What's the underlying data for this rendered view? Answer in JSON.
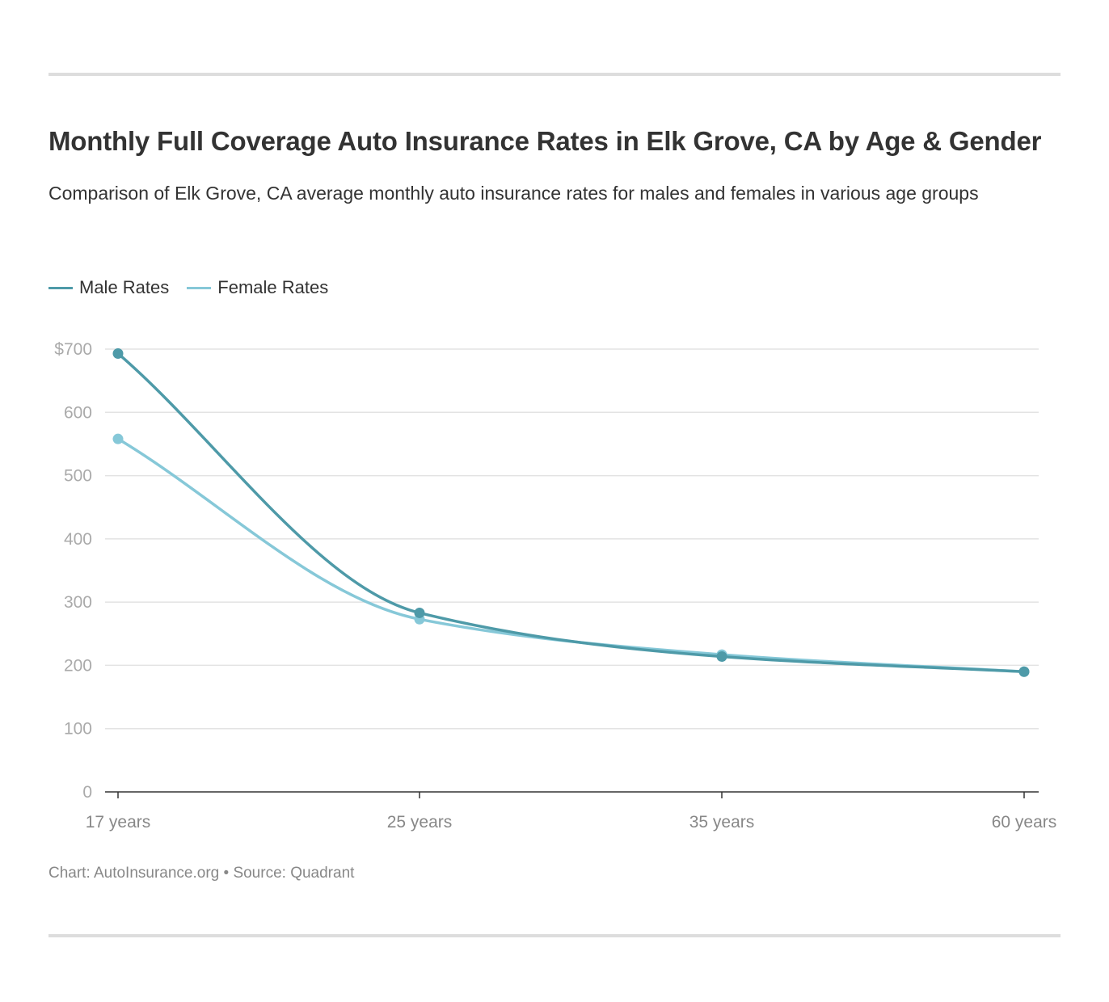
{
  "header": {
    "title": "Monthly Full Coverage Auto Insurance Rates in Elk Grove, CA by Age & Gender",
    "subtitle": "Comparison of Elk Grove, CA average monthly auto insurance rates for males and females in various age groups"
  },
  "legend": {
    "items": [
      {
        "label": "Male Rates",
        "color": "#4e9aa8"
      },
      {
        "label": "Female Rates",
        "color": "#86c8d8"
      }
    ]
  },
  "footer": {
    "source": "Chart: AutoInsurance.org • Source: Quadrant"
  },
  "chart_data": {
    "type": "line",
    "categories": [
      "17 years",
      "25 years",
      "35 years",
      "60 years"
    ],
    "series": [
      {
        "name": "Male Rates",
        "values": [
          693,
          283,
          214,
          190
        ],
        "color": "#4e9aa8"
      },
      {
        "name": "Female Rates",
        "values": [
          558,
          273,
          217,
          190
        ],
        "color": "#86c8d8"
      }
    ],
    "title": "Monthly Full Coverage Auto Insurance Rates in Elk Grove, CA by Age & Gender",
    "subtitle": "Comparison of Elk Grove, CA average monthly auto insurance rates for males and females in various age groups",
    "ylim": [
      0,
      700
    ],
    "yticks": [
      0,
      100,
      200,
      300,
      400,
      500,
      600,
      700
    ],
    "ytick_labels": [
      "0",
      "100",
      "200",
      "300",
      "400",
      "500",
      "600",
      "$700"
    ],
    "grid": true,
    "legend": "top-left",
    "smooth": true
  }
}
